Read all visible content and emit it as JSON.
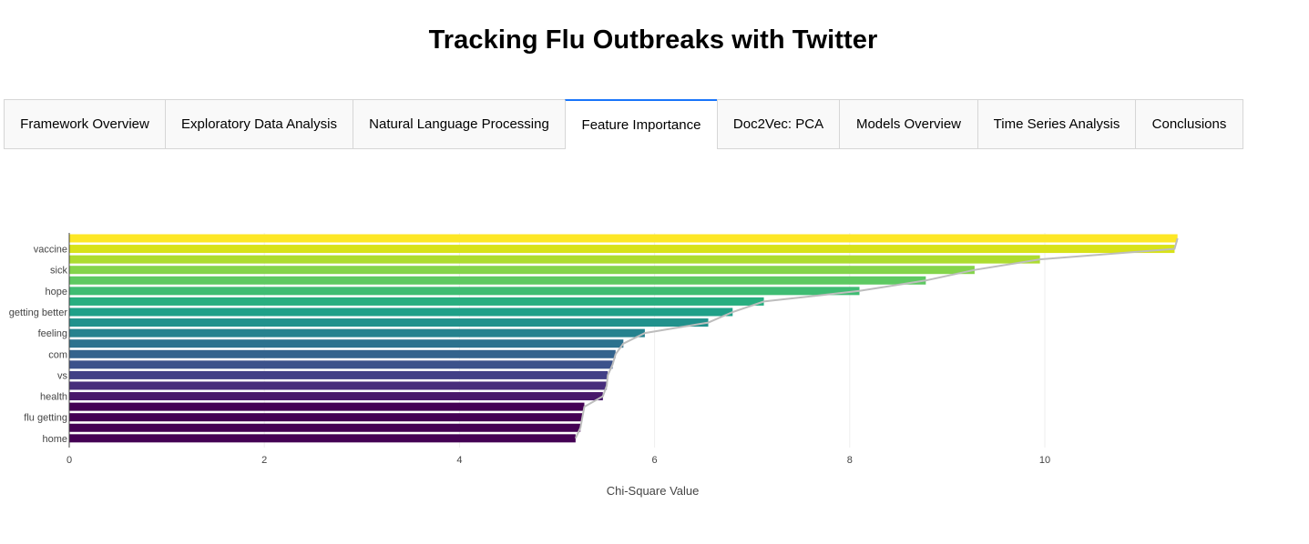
{
  "page": {
    "title": "Tracking Flu Outbreaks with Twitter"
  },
  "tabs": [
    {
      "label": "Framework Overview",
      "selected": false
    },
    {
      "label": "Exploratory Data Analysis",
      "selected": false
    },
    {
      "label": "Natural Language Processing",
      "selected": false
    },
    {
      "label": "Feature Importance",
      "selected": true
    },
    {
      "label": "Doc2Vec: PCA",
      "selected": false
    },
    {
      "label": "Models Overview",
      "selected": false
    },
    {
      "label": "Time Series Analysis",
      "selected": false
    },
    {
      "label": "Conclusions",
      "selected": false
    }
  ],
  "colors": {
    "accent": "#1975fa",
    "trend_line": "#bdbdbd",
    "gridline": "#eeeeee"
  },
  "chart_data": {
    "type": "bar",
    "orientation": "horizontal",
    "xlabel": "Chi-Square Value",
    "xlim": [
      0,
      11.7
    ],
    "x_ticks": [
      0,
      2,
      4,
      6,
      8,
      10
    ],
    "grid": true,
    "categories": [
      "",
      "vaccine",
      "",
      "sick",
      "",
      "hope",
      "",
      "getting better",
      "",
      "feeling",
      "",
      "com",
      "",
      "vs",
      "",
      "health",
      "",
      "flu getting",
      "",
      "home"
    ],
    "values": [
      11.36,
      11.33,
      9.95,
      9.28,
      8.78,
      8.1,
      7.12,
      6.8,
      6.55,
      5.9,
      5.68,
      5.6,
      5.57,
      5.52,
      5.51,
      5.47,
      5.28,
      5.26,
      5.24,
      5.19
    ],
    "bar_colors": [
      "#fde725",
      "#d8e219",
      "#addc30",
      "#84d44b",
      "#5ec962",
      "#3fbc73",
      "#28ae80",
      "#1fa088",
      "#21918c",
      "#26828e",
      "#2c728e",
      "#33638d",
      "#3b528b",
      "#424086",
      "#472d7b",
      "#48186a",
      "#440154",
      "#440154",
      "#440154",
      "#440154"
    ],
    "trend": true
  }
}
